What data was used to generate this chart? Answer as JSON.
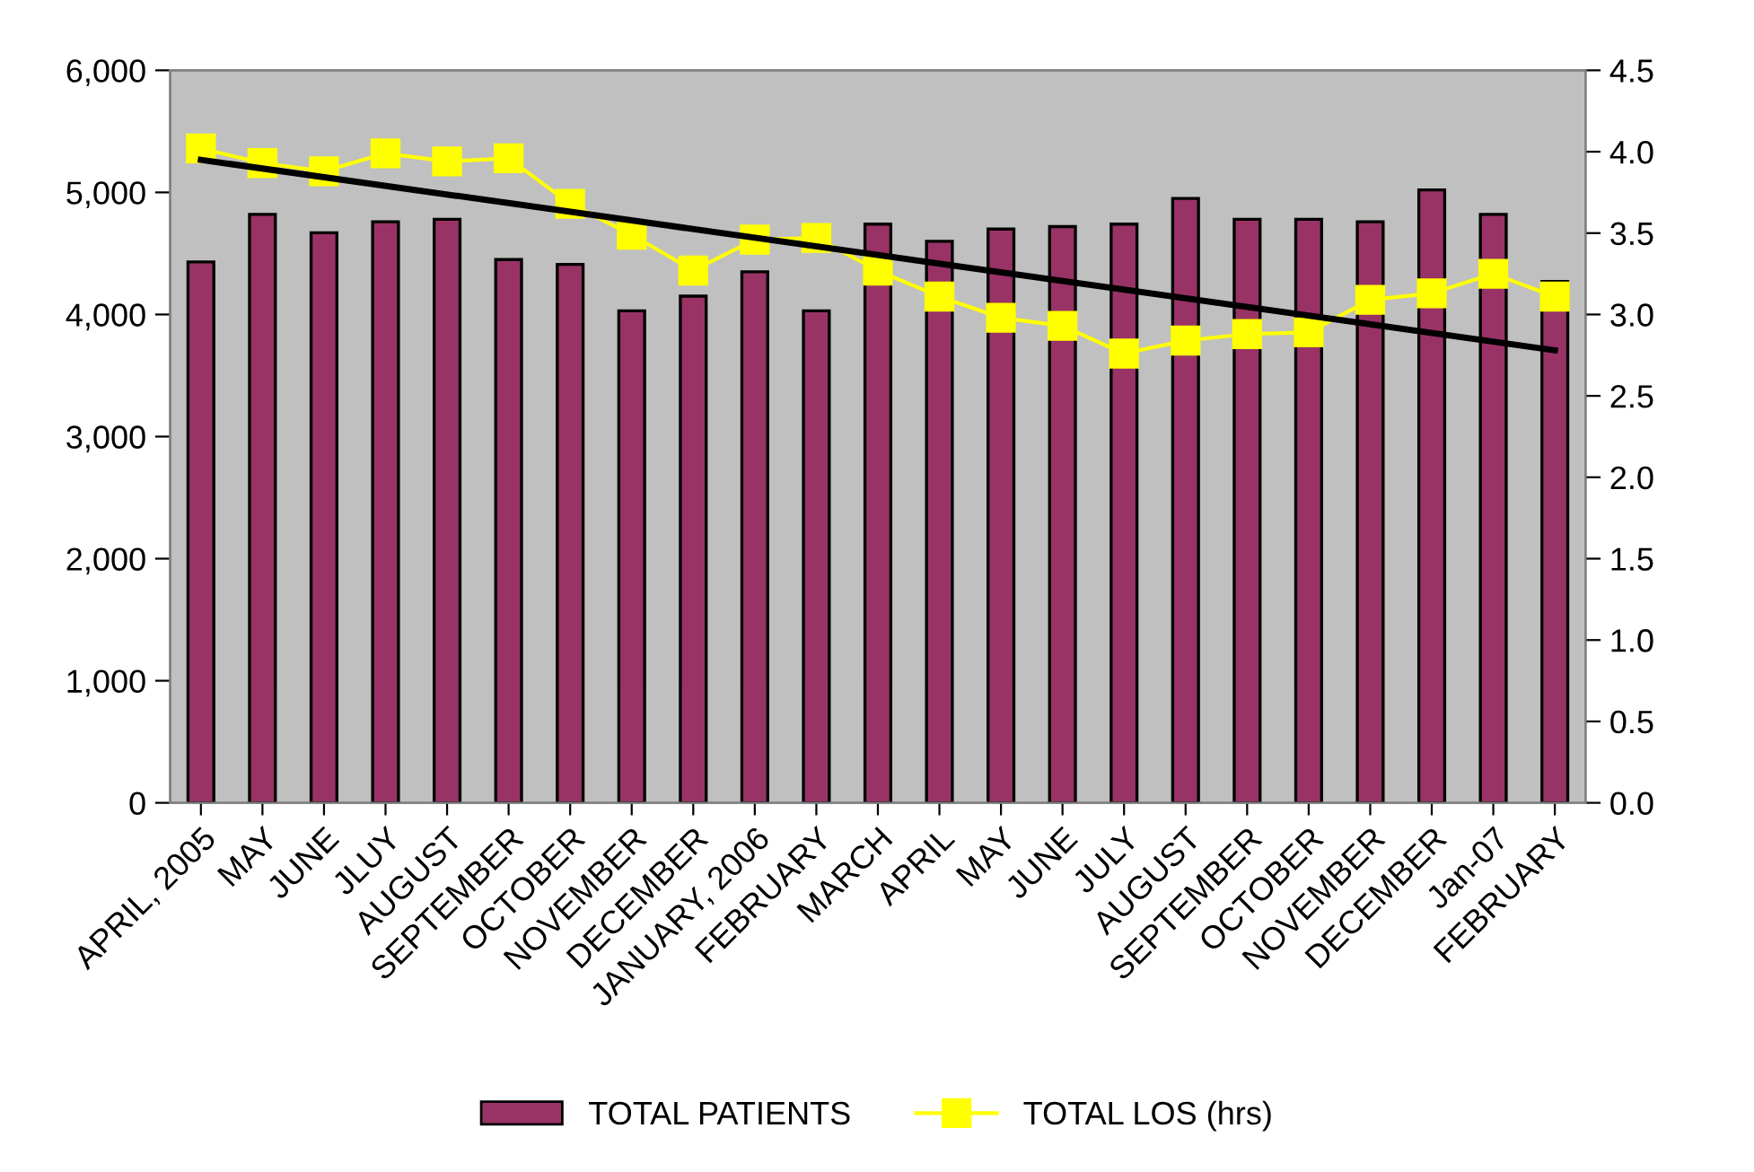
{
  "chart_data": {
    "type": "bar",
    "categories": [
      "APRIL, 2005",
      "MAY",
      "JUNE",
      "JLUY",
      "AUGUST",
      "SEPTEMBER",
      "OCTOBER",
      "NOVEMBER",
      "DECEMBER",
      "JANUARY, 2006",
      "FEBRUARY",
      "MARCH",
      "APRIL",
      "MAY",
      "JUNE",
      "JULY",
      "AUGUST",
      "SEPTEMBER",
      "OCTOBER",
      "NOVEMBER",
      "DECEMBER",
      "Jan-07",
      "FEBRUARY"
    ],
    "series": [
      {
        "name": "TOTAL PATIENTS",
        "color": "#993366",
        "values": [
          4430,
          4820,
          4670,
          4760,
          4780,
          4450,
          4410,
          4030,
          4150,
          4350,
          4030,
          4740,
          4600,
          4700,
          4720,
          4740,
          4950,
          4780,
          4780,
          4760,
          5020,
          4820,
          4270
        ]
      },
      {
        "name": "TOTAL LOS (hrs)",
        "type": "line",
        "axis": "y2",
        "color": "#ffff00",
        "marker": "square",
        "values": [
          4.02,
          3.93,
          3.88,
          3.99,
          3.94,
          3.96,
          3.68,
          3.49,
          3.27,
          3.46,
          3.47,
          3.27,
          3.11,
          2.98,
          2.93,
          2.76,
          2.84,
          2.88,
          2.89,
          3.09,
          3.13,
          3.25,
          3.11
        ]
      },
      {
        "type": "line",
        "axis": "y2",
        "color": "#000000",
        "marker": "none",
        "values": [
          3.95,
          null,
          null,
          null,
          null,
          null,
          null,
          null,
          null,
          null,
          null,
          null,
          null,
          null,
          null,
          null,
          null,
          null,
          null,
          null,
          null,
          null,
          2.78
        ]
      }
    ],
    "ylim": [
      0,
      6000
    ],
    "yticks": [
      0,
      {
        "value": 1000,
        "label": "1,000"
      },
      {
        "value": 2000,
        "label": "2,000"
      },
      {
        "value": 3000,
        "label": "3,000"
      },
      {
        "value": 4000,
        "label": "4,000"
      },
      {
        "value": 5000,
        "label": "5,000"
      },
      {
        "value": 6000,
        "label": "6,000"
      }
    ],
    "y2lim": [
      0,
      4.5
    ],
    "y2ticks": [
      {
        "value": 0,
        "label": "0.0"
      },
      0.5,
      {
        "value": 1,
        "label": "1.0"
      },
      1.5,
      {
        "value": 2,
        "label": "2.0"
      },
      2.5,
      {
        "value": 3,
        "label": "3.0"
      },
      3.5,
      {
        "value": 4,
        "label": "4.0"
      },
      4.5
    ],
    "legend": "bottom",
    "grid": false
  }
}
